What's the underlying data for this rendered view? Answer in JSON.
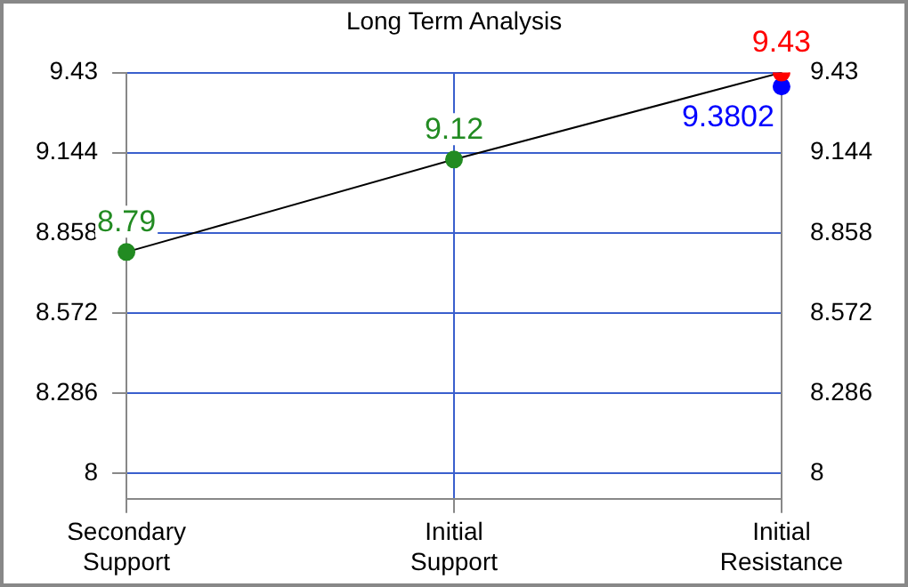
{
  "chart_data": {
    "type": "line",
    "title": "Long Term Analysis",
    "categories": [
      "Secondary Support",
      "Initial Support",
      "Initial Resistance"
    ],
    "series": [
      {
        "color": "#000000",
        "colors": [
          "#228b22",
          "#228b22",
          "#ff0000"
        ],
        "values": [
          8.79,
          9.12,
          9.43
        ]
      },
      {
        "type": "scatter",
        "x": [
          "Initial Resistance"
        ],
        "color": "#0000ff",
        "values": [
          9.3802
        ]
      }
    ],
    "ylim": [
      7.91,
      9.43
    ],
    "yticks": [
      8,
      8.286,
      8.572,
      8.858,
      9.144,
      9.43
    ],
    "y2lim": [
      7.91,
      9.43
    ],
    "y2ticks": [
      8,
      8.286,
      8.572,
      8.858,
      9.144,
      9.43
    ],
    "grid": true,
    "marker": "circle",
    "line_style": "solid",
    "data_labels": true
  }
}
